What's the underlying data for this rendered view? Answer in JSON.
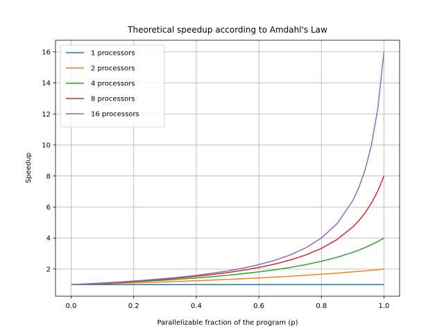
{
  "chart_data": {
    "type": "line",
    "title": "Theoretical speedup according to Amdahl's Law",
    "xlabel": "Parallelizable fraction of the program (p)",
    "ylabel": "Speedup",
    "xlim": [
      -0.05,
      1.05
    ],
    "ylim": [
      0.25,
      16.75
    ],
    "xticks": [
      0.0,
      0.2,
      0.4,
      0.6,
      0.8,
      1.0
    ],
    "xtick_labels": [
      "0.0",
      "0.2",
      "0.4",
      "0.6",
      "0.8",
      "1.0"
    ],
    "yticks": [
      2,
      4,
      6,
      8,
      10,
      12,
      14,
      16
    ],
    "ytick_labels": [
      "2",
      "4",
      "6",
      "8",
      "10",
      "12",
      "14",
      "16"
    ],
    "grid": true,
    "legend_position": "top-left",
    "x": [
      0.0,
      0.05,
      0.1,
      0.15,
      0.2,
      0.25,
      0.3,
      0.35,
      0.4,
      0.45,
      0.5,
      0.55,
      0.6,
      0.65,
      0.7,
      0.75,
      0.8,
      0.85,
      0.9,
      0.92,
      0.94,
      0.96,
      0.98,
      1.0
    ],
    "series": [
      {
        "name": "1 processors",
        "color": "#1f77b4",
        "values": [
          1.0,
          1.0,
          1.0,
          1.0,
          1.0,
          1.0,
          1.0,
          1.0,
          1.0,
          1.0,
          1.0,
          1.0,
          1.0,
          1.0,
          1.0,
          1.0,
          1.0,
          1.0,
          1.0,
          1.0,
          1.0,
          1.0,
          1.0,
          1.0
        ]
      },
      {
        "name": "2 processors",
        "color": "#ff7f0e",
        "values": [
          1.0,
          1.026,
          1.053,
          1.081,
          1.111,
          1.143,
          1.176,
          1.212,
          1.25,
          1.29,
          1.333,
          1.379,
          1.429,
          1.481,
          1.538,
          1.6,
          1.667,
          1.739,
          1.818,
          1.852,
          1.887,
          1.923,
          1.961,
          2.0
        ]
      },
      {
        "name": "4 processors",
        "color": "#2ca02c",
        "values": [
          1.0,
          1.039,
          1.081,
          1.127,
          1.176,
          1.231,
          1.29,
          1.356,
          1.429,
          1.509,
          1.6,
          1.702,
          1.818,
          1.951,
          2.105,
          2.286,
          2.5,
          2.759,
          3.077,
          3.226,
          3.39,
          3.571,
          3.774,
          4.0
        ]
      },
      {
        "name": "8 processors",
        "color": "#d62728",
        "values": [
          1.0,
          1.045,
          1.096,
          1.151,
          1.212,
          1.28,
          1.356,
          1.441,
          1.538,
          1.649,
          1.778,
          1.928,
          2.105,
          2.319,
          2.581,
          2.909,
          3.333,
          3.902,
          4.706,
          5.128,
          5.634,
          6.25,
          7.018,
          8.0
        ]
      },
      {
        "name": "16 processors",
        "color": "#9467bd",
        "values": [
          1.0,
          1.049,
          1.103,
          1.163,
          1.231,
          1.306,
          1.391,
          1.488,
          1.6,
          1.73,
          1.882,
          2.065,
          2.286,
          2.56,
          2.909,
          3.368,
          4.0,
          4.923,
          6.4,
          7.273,
          8.421,
          10.0,
          12.308,
          16.0
        ]
      }
    ]
  }
}
